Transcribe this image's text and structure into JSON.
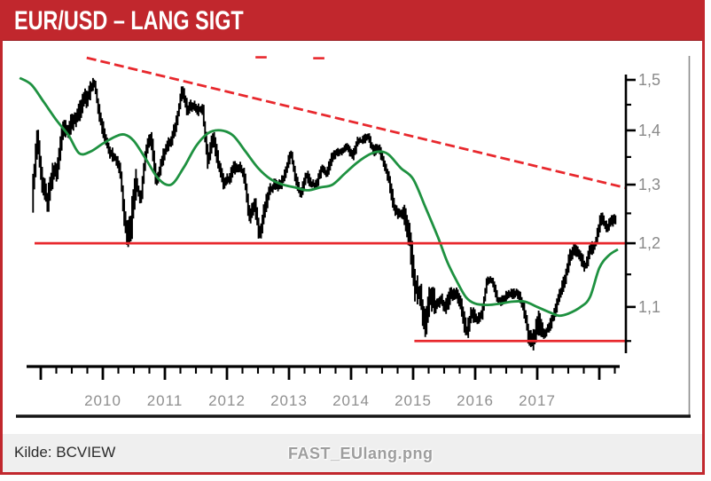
{
  "window": {
    "title": "EUR/USD – LANG SIGT"
  },
  "footer": {
    "source_label": "Kilde: BCVIEW",
    "filename_watermark": "FAST_EUlang.png"
  },
  "colors": {
    "header_red": "#c1272d",
    "chart_line_red": "#e8282d",
    "ma_green": "#1e9140",
    "bars_black": "#000000",
    "axis_label_gray": "#8a8a8a",
    "footer_bg": "#efefef"
  },
  "chart_data": {
    "type": "line",
    "subtype": "weekly-price-bars-with-moving-average",
    "instrument": "EUR/USD",
    "title": "EUR/USD – LANG SIGT",
    "x_unit": "decimal_year",
    "grid": false,
    "legend": false,
    "series": [
      {
        "name": "EUR/USD price (close approximations, rendered as dense high-low bars)",
        "color": "#000000",
        "x": [
          2008.875,
          2008.958,
          2009.042,
          2009.125,
          2009.208,
          2009.292,
          2009.375,
          2009.458,
          2009.542,
          2009.625,
          2009.708,
          2009.792,
          2009.875,
          2009.958,
          2010.042,
          2010.125,
          2010.208,
          2010.292,
          2010.375,
          2010.458,
          2010.542,
          2010.625,
          2010.708,
          2010.792,
          2010.875,
          2010.958,
          2011.042,
          2011.125,
          2011.208,
          2011.292,
          2011.375,
          2011.458,
          2011.542,
          2011.625,
          2011.708,
          2011.792,
          2011.875,
          2011.958,
          2012.042,
          2012.125,
          2012.208,
          2012.292,
          2012.375,
          2012.458,
          2012.542,
          2012.625,
          2012.708,
          2012.792,
          2012.875,
          2012.958,
          2013.042,
          2013.125,
          2013.208,
          2013.292,
          2013.375,
          2013.458,
          2013.542,
          2013.625,
          2013.708,
          2013.792,
          2013.875,
          2013.958,
          2014.042,
          2014.125,
          2014.208,
          2014.292,
          2014.375,
          2014.458,
          2014.542,
          2014.625,
          2014.708,
          2014.792,
          2014.875,
          2014.958,
          2015.042,
          2015.125,
          2015.208,
          2015.292,
          2015.375,
          2015.458,
          2015.542,
          2015.625,
          2015.708,
          2015.792,
          2015.875,
          2015.958,
          2016.042,
          2016.125,
          2016.208,
          2016.292,
          2016.375,
          2016.458,
          2016.542,
          2016.625,
          2016.708,
          2016.792,
          2016.875,
          2016.958,
          2017.042,
          2017.125,
          2017.208,
          2017.292,
          2017.375,
          2017.458,
          2017.542,
          2017.625,
          2017.708,
          2017.792,
          2017.875,
          2017.958,
          2018.042,
          2018.125,
          2018.208,
          2018.27
        ],
        "values": [
          1.27,
          1.39,
          1.3,
          1.27,
          1.32,
          1.33,
          1.41,
          1.4,
          1.42,
          1.43,
          1.46,
          1.47,
          1.5,
          1.43,
          1.39,
          1.36,
          1.35,
          1.33,
          1.23,
          1.22,
          1.31,
          1.27,
          1.36,
          1.39,
          1.3,
          1.34,
          1.37,
          1.38,
          1.42,
          1.48,
          1.44,
          1.45,
          1.44,
          1.44,
          1.34,
          1.39,
          1.34,
          1.3,
          1.31,
          1.33,
          1.33,
          1.32,
          1.24,
          1.27,
          1.21,
          1.26,
          1.29,
          1.3,
          1.3,
          1.32,
          1.36,
          1.31,
          1.28,
          1.32,
          1.3,
          1.3,
          1.33,
          1.32,
          1.35,
          1.36,
          1.36,
          1.37,
          1.35,
          1.38,
          1.38,
          1.39,
          1.36,
          1.37,
          1.34,
          1.31,
          1.26,
          1.25,
          1.25,
          1.21,
          1.13,
          1.12,
          1.07,
          1.12,
          1.1,
          1.11,
          1.1,
          1.12,
          1.12,
          1.1,
          1.06,
          1.09,
          1.08,
          1.09,
          1.14,
          1.14,
          1.11,
          1.11,
          1.12,
          1.12,
          1.12,
          1.1,
          1.06,
          1.05,
          1.08,
          1.06,
          1.07,
          1.09,
          1.12,
          1.14,
          1.18,
          1.19,
          1.18,
          1.16,
          1.19,
          1.2,
          1.245,
          1.225,
          1.235,
          1.24
        ]
      },
      {
        "name": "long moving average",
        "color": "#1e9140",
        "x": [
          2008.66,
          2008.85,
          2009.05,
          2009.25,
          2009.45,
          2009.62,
          2009.8,
          2010.0,
          2010.2,
          2010.35,
          2010.5,
          2010.7,
          2010.9,
          2011.1,
          2011.3,
          2011.5,
          2011.7,
          2011.9,
          2012.1,
          2012.3,
          2012.5,
          2012.7,
          2012.9,
          2013.1,
          2013.3,
          2013.5,
          2013.7,
          2013.9,
          2014.1,
          2014.3,
          2014.45,
          2014.6,
          2014.8,
          2015.0,
          2015.2,
          2015.4,
          2015.55,
          2015.7,
          2015.85,
          2016.0,
          2016.2,
          2016.4,
          2016.6,
          2016.8,
          2017.0,
          2017.2,
          2017.35,
          2017.5,
          2017.7,
          2017.85,
          2018.0,
          2018.15,
          2018.3
        ],
        "values": [
          1.504,
          1.49,
          1.455,
          1.42,
          1.39,
          1.357,
          1.36,
          1.375,
          1.388,
          1.392,
          1.38,
          1.345,
          1.31,
          1.3,
          1.33,
          1.37,
          1.395,
          1.4,
          1.39,
          1.36,
          1.33,
          1.31,
          1.3,
          1.295,
          1.29,
          1.295,
          1.3,
          1.32,
          1.34,
          1.355,
          1.36,
          1.355,
          1.33,
          1.31,
          1.26,
          1.21,
          1.17,
          1.14,
          1.115,
          1.105,
          1.103,
          1.105,
          1.108,
          1.108,
          1.1,
          1.092,
          1.087,
          1.09,
          1.1,
          1.115,
          1.16,
          1.18,
          1.19
        ]
      }
    ],
    "overlays": {
      "trendline": {
        "color": "#e8282d",
        "style": "dashed",
        "x1": 2009.74,
        "y1": 1.546,
        "x2": 2018.44,
        "y2": 1.294
      },
      "support_lines": [
        {
          "color": "#e8282d",
          "value": 1.2,
          "x1": 2008.9,
          "x2": 2018.45
        },
        {
          "color": "#e8282d",
          "value": 1.05,
          "x1": 2015.02,
          "x2": 2018.45
        }
      ],
      "stray_dashes": [
        {
          "x1": 2012.46,
          "x2": 2012.64,
          "value": 1.547
        },
        {
          "x1": 2013.39,
          "x2": 2013.57,
          "value": 1.545
        }
      ]
    },
    "y_axis": {
      "side": "right",
      "scale": "log",
      "range": [
        1.03,
        1.555
      ],
      "major_ticks": [
        1.5,
        1.4,
        1.3,
        1.2,
        1.1
      ],
      "major_tick_labels": [
        "1,5",
        "1,4",
        "1,3",
        "1,2",
        "1,1"
      ],
      "minor_ticks": [
        1.45,
        1.35,
        1.25,
        1.15,
        1.05
      ]
    },
    "x_axis": {
      "range": [
        2008.72,
        2018.45
      ],
      "minor_tick_interval": "quarter",
      "major_tick_interval": "year",
      "label_years": [
        2010,
        2011,
        2012,
        2013,
        2014,
        2015,
        2016,
        2017
      ],
      "year_labels": [
        "2010",
        "2011",
        "2012",
        "2013",
        "2014",
        "2015",
        "2016",
        "2017"
      ]
    }
  }
}
